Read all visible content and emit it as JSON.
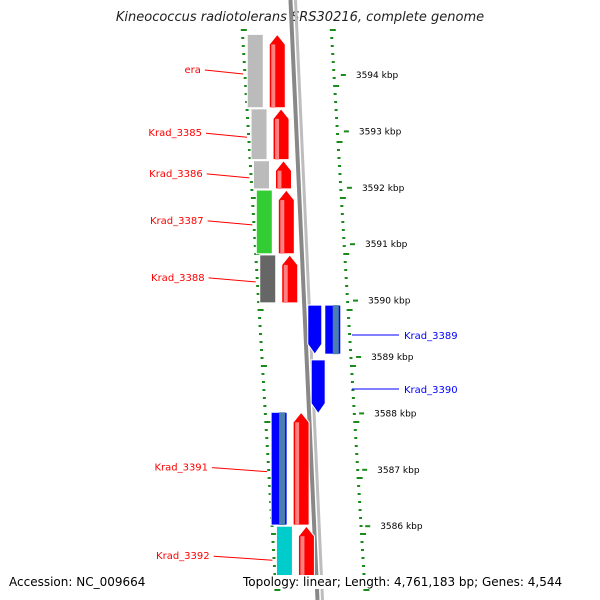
{
  "title": "Kineococcus radiotolerans SRS30216, complete genome",
  "footer": {
    "accession": "Accession: NC_009664",
    "summary": "Topology: linear; Length: 4,761,183 bp; Genes: 4,544"
  },
  "colors": {
    "forward_gene": "#ff0000",
    "reverse_gene": "#0000ff",
    "ruler": "#1a8a1a",
    "backbone": "#888888"
  },
  "scale_labels": [
    {
      "label": "3594 kbp",
      "kbp": 3594
    },
    {
      "label": "3593 kbp",
      "kbp": 3593
    },
    {
      "label": "3592 kbp",
      "kbp": 3592
    },
    {
      "label": "3591 kbp",
      "kbp": 3591
    },
    {
      "label": "3590 kbp",
      "kbp": 3590
    },
    {
      "label": "3589 kbp",
      "kbp": 3589
    },
    {
      "label": "3588 kbp",
      "kbp": 3588
    },
    {
      "label": "3587 kbp",
      "kbp": 3587
    },
    {
      "label": "3586 kbp",
      "kbp": 3586
    }
  ],
  "genes": [
    {
      "name": "era",
      "strand": "forward",
      "start": 3593.42,
      "end": 3594.72,
      "cog_color": "#bbbbbb"
    },
    {
      "name": "Krad_3385",
      "strand": "forward",
      "start": 3592.5,
      "end": 3593.4,
      "cog_color": "#bbbbbb"
    },
    {
      "name": "Krad_3386",
      "strand": "forward",
      "start": 3591.98,
      "end": 3592.48,
      "cog_color": "#bbbbbb"
    },
    {
      "name": "Krad_3387",
      "strand": "forward",
      "start": 3590.83,
      "end": 3591.96,
      "cog_color": "#33cc33"
    },
    {
      "name": "Krad_3388",
      "strand": "forward",
      "start": 3589.96,
      "end": 3590.81,
      "cog_color": "#666666"
    },
    {
      "name": "Krad_3389",
      "strand": "reverse",
      "start": 3589.05,
      "end": 3589.92,
      "cog_color": "#0000ff"
    },
    {
      "name": "Krad_3390",
      "strand": "reverse",
      "start": 3588.0,
      "end": 3588.95,
      "cog_color": "#0000ff"
    },
    {
      "name": "Krad_3391",
      "strand": "forward",
      "start": 3586.02,
      "end": 3588.02,
      "cog_color": "#0000ff"
    },
    {
      "name": "Krad_3392",
      "strand": "forward",
      "start": 3584.9,
      "end": 3586.0,
      "cog_color": "#00cccc"
    }
  ]
}
